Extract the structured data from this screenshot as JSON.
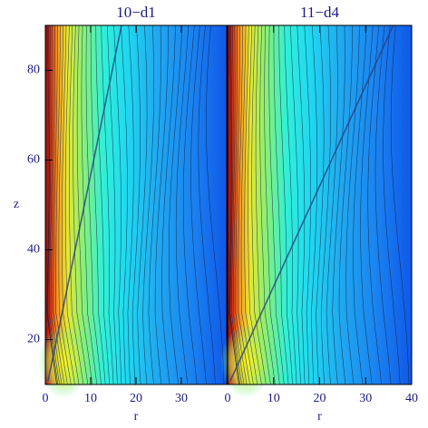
{
  "chart_data": [
    {
      "type": "contour",
      "title": "10−d1",
      "xlabel": "r",
      "ylabel": "z",
      "xlim": [
        0,
        40
      ],
      "ylim": [
        10,
        90
      ],
      "xticks": [
        0,
        10,
        20,
        30
      ],
      "yticks": [
        20,
        40,
        60,
        80
      ]
    },
    {
      "type": "contour",
      "title": "11−d4",
      "xlabel": "r",
      "xlim": [
        0,
        40
      ],
      "ylim": [
        10,
        90
      ],
      "xticks": [
        0,
        10,
        20,
        30,
        40
      ]
    }
  ]
}
